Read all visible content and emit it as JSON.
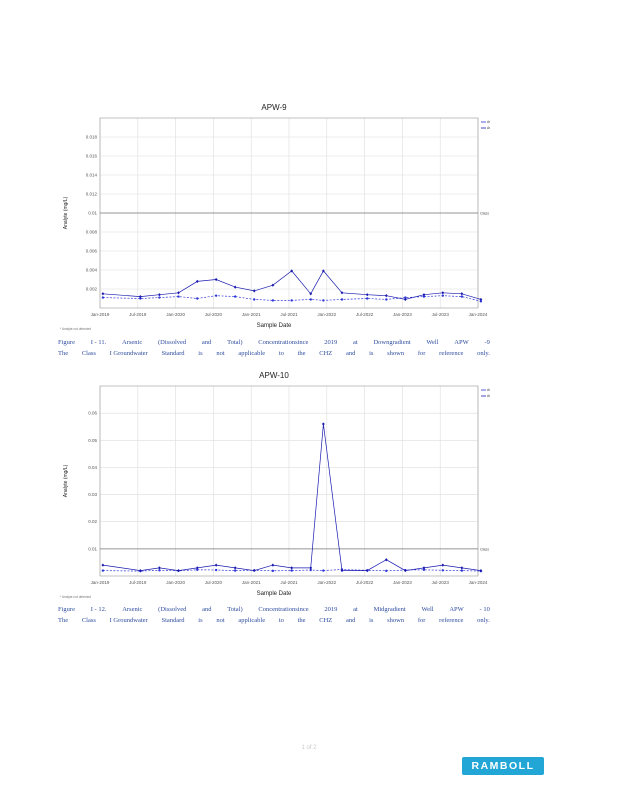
{
  "charts": [
    {
      "id": "apw9",
      "title": "APW-9",
      "xlabel": "Sample Date",
      "ylabel": "Analyte (mg/L)",
      "footnote": "* Analyte not detected",
      "x_ticks": [
        "Jan-2019",
        "Jul-2019",
        "Jan-2020",
        "Jul-2020",
        "Jan-2021",
        "Jul-2021",
        "Jan-2022",
        "Jul-2022",
        "Jan-2023",
        "Jul-2023",
        "Jan-2024"
      ],
      "y_ticks": [
        "0.018",
        "0.016",
        "0.014",
        "0.012",
        "0.01",
        "0.008",
        "0.006",
        "0.004",
        "0.002"
      ],
      "ref_label": "Class I GW Standard (0.010 mg/L)",
      "legend": [
        "As, Dissolved mg/L",
        "As, Total mg/L"
      ],
      "colors": {
        "series1": "#2e35d8",
        "series2": "#1a1ab0",
        "reference": "#777777",
        "grid": "#dddddd"
      }
    },
    {
      "id": "apw10",
      "title": "APW-10",
      "xlabel": "Sample Date",
      "ylabel": "Analyte (mg/L)",
      "footnote": "* Analyte not detected",
      "x_ticks": [
        "Jan-2019",
        "Jul-2019",
        "Jan-2020",
        "Jul-2020",
        "Jan-2021",
        "Jul-2021",
        "Jan-2022",
        "Jul-2022",
        "Jan-2023",
        "Jul-2023",
        "Jan-2024"
      ],
      "y_ticks": [
        "0.06",
        "0.05",
        "0.04",
        "0.03",
        "0.02",
        "0.01"
      ],
      "ref_label": "Class I GW Standard (0.010 mg/L)",
      "legend": [
        "As, Dissolved mg/L",
        "As, Total mg/L"
      ],
      "colors": {
        "series1": "#2e35d8",
        "series2": "#1a1ab0",
        "reference": "#777777",
        "grid": "#dddddd"
      }
    }
  ],
  "chart_data": [
    {
      "type": "line",
      "title": "APW-9",
      "xlabel": "Sample Date",
      "ylabel": "Analyte (mg/L)",
      "ylim": [
        0,
        0.02
      ],
      "x": [
        "2019-01-15",
        "2019-07-15",
        "2019-10-15",
        "2020-01-15",
        "2020-04-15",
        "2020-07-15",
        "2020-10-15",
        "2021-01-15",
        "2021-04-15",
        "2021-07-15",
        "2021-10-15",
        "2021-12-15",
        "2022-03-15",
        "2022-07-15",
        "2022-10-15",
        "2023-01-15",
        "2023-04-15",
        "2023-07-15",
        "2023-10-15",
        "2024-01-15"
      ],
      "series": [
        {
          "name": "As, Dissolved mg/L",
          "values": [
            0.0011,
            0.001,
            0.0011,
            0.0012,
            0.001,
            0.0013,
            0.0012,
            0.0009,
            0.0008,
            0.0008,
            0.0009,
            0.0008,
            0.0009,
            0.001,
            0.0009,
            0.0011,
            0.0012,
            0.0013,
            0.0012,
            0.0007
          ]
        },
        {
          "name": "As, Total mg/L",
          "values": [
            0.0015,
            0.0012,
            0.0014,
            0.0016,
            0.0028,
            0.003,
            0.0022,
            0.0018,
            0.0024,
            0.0039,
            0.0015,
            0.0039,
            0.0016,
            0.0014,
            0.0013,
            0.0009,
            0.0014,
            0.0016,
            0.0015,
            0.0009
          ]
        }
      ],
      "reference_line": {
        "label": "Class I GW Standard (0.010 mg/L)",
        "value": 0.01
      },
      "legend": "top-right",
      "grid": true
    },
    {
      "type": "line",
      "title": "APW-10",
      "xlabel": "Sample Date",
      "ylabel": "Analyte (mg/L)",
      "ylim": [
        0,
        0.07
      ],
      "x": [
        "2019-01-15",
        "2019-07-15",
        "2019-10-15",
        "2020-01-15",
        "2020-04-15",
        "2020-07-15",
        "2020-10-15",
        "2021-01-15",
        "2021-04-15",
        "2021-07-15",
        "2021-10-15",
        "2021-12-15",
        "2022-03-15",
        "2022-07-15",
        "2022-10-15",
        "2023-01-15",
        "2023-04-15",
        "2023-07-15",
        "2023-10-15",
        "2024-01-15"
      ],
      "series": [
        {
          "name": "As, Dissolved mg/L",
          "values": [
            0.002,
            0.0018,
            0.0021,
            0.0019,
            0.0023,
            0.0022,
            0.002,
            0.0021,
            0.0019,
            0.002,
            0.0022,
            0.002,
            0.0024,
            0.0021,
            0.0019,
            0.0022,
            0.0023,
            0.0021,
            0.002,
            0.0018
          ]
        },
        {
          "name": "As, Total mg/L",
          "values": [
            0.004,
            0.002,
            0.003,
            0.002,
            0.003,
            0.004,
            0.003,
            0.002,
            0.004,
            0.003,
            0.003,
            0.056,
            0.002,
            0.002,
            0.006,
            0.002,
            0.003,
            0.004,
            0.003,
            0.002
          ]
        }
      ],
      "reference_line": {
        "label": "Class I GW Standard (0.010 mg/L)",
        "value": 0.01
      },
      "legend": "top-right",
      "grid": true
    }
  ],
  "captions": [
    {
      "line1": [
        "Figure",
        "I - 11.",
        "Arsenic",
        "(Dissolved",
        "and",
        "Total)",
        "Concentrationsince",
        "2019",
        "at",
        "Downgradient",
        "Well",
        "APW",
        "-9"
      ],
      "line2": [
        "The",
        "Class",
        "I Groundwater",
        "Standard",
        "is",
        "not",
        "applicable",
        "to",
        "the",
        "CHZ",
        "and",
        "is",
        "shown",
        "for",
        "reference",
        "only."
      ]
    },
    {
      "line1": [
        "Figure",
        "I - 12.",
        "Arsenic",
        "(Dissolved",
        "and",
        "Total)",
        "Concentrationsince",
        "2019",
        "at",
        "Midgradient",
        "Well",
        "APW",
        "- 10"
      ],
      "line2": [
        "The",
        "Class",
        "I Groundwater",
        "Standard",
        "is",
        "not",
        "applicable",
        "to",
        "the",
        "CHZ",
        "and",
        "is",
        "shown",
        "for",
        "reference",
        "only."
      ]
    }
  ],
  "page": {
    "number": "1 of 2"
  },
  "logo": {
    "text": "RAMBOLL",
    "color": "#21a6d6"
  }
}
